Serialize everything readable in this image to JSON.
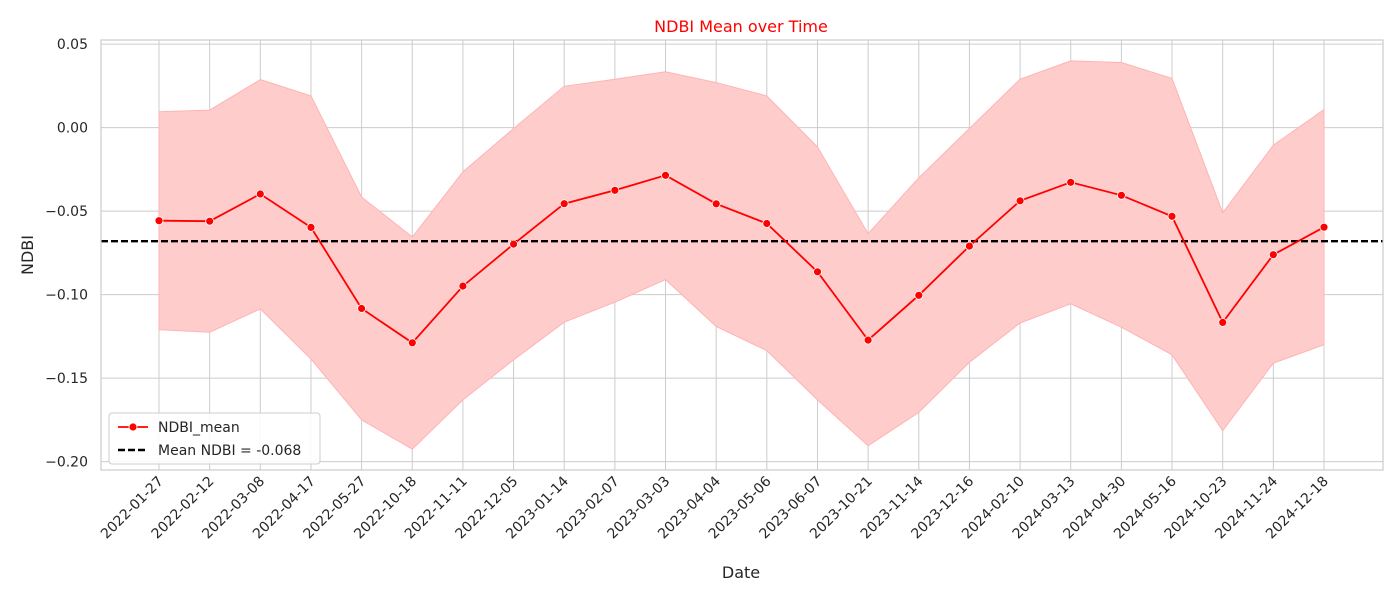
{
  "chart_data": {
    "type": "line",
    "title": "NDBI Mean over Time",
    "xlabel": "Date",
    "ylabel": "NDBI",
    "ylim": [
      -0.205,
      0.0525
    ],
    "yticks": [
      0.05,
      0.0,
      -0.05,
      -0.1,
      -0.15,
      -0.2
    ],
    "ytick_labels": [
      "0.05",
      "0.00",
      "−0.05",
      "−0.10",
      "−0.15",
      "−0.20"
    ],
    "grid": true,
    "legend_position": "lower-left",
    "colors": {
      "series": "#ff0000",
      "band": "#ffcccc",
      "band_edge": "#ffb3b3",
      "mean_line": "#000000",
      "title": "#ff0000"
    },
    "x": [
      "2022-01-27",
      "2022-02-12",
      "2022-03-08",
      "2022-04-17",
      "2022-05-27",
      "2022-10-18",
      "2022-11-11",
      "2022-12-05",
      "2023-01-14",
      "2023-02-07",
      "2023-03-03",
      "2023-04-04",
      "2023-05-06",
      "2023-06-07",
      "2023-10-21",
      "2023-11-14",
      "2023-12-16",
      "2024-02-10",
      "2024-03-13",
      "2024-04-30",
      "2024-05-16",
      "2024-10-23",
      "2024-11-24",
      "2024-12-18"
    ],
    "series": [
      {
        "name": "NDBI_mean",
        "values": [
          -0.0557,
          -0.056,
          -0.0397,
          -0.0597,
          -0.1083,
          -0.1288,
          -0.0949,
          -0.0697,
          -0.0455,
          -0.0375,
          -0.0285,
          -0.0456,
          -0.0574,
          -0.0863,
          -0.1272,
          -0.1004,
          -0.0709,
          -0.0438,
          -0.0327,
          -0.0405,
          -0.0531,
          -0.1166,
          -0.0761,
          -0.0596
        ],
        "upper": [
          0.0095,
          0.0105,
          0.0288,
          0.019,
          -0.0415,
          -0.0655,
          -0.0265,
          -0.0005,
          0.0248,
          0.029,
          0.0335,
          0.027,
          0.019,
          -0.0115,
          -0.0635,
          -0.03,
          -0.0005,
          0.029,
          0.04,
          0.039,
          0.0295,
          -0.051,
          -0.0105,
          0.0108
        ],
        "lower": [
          -0.121,
          -0.1225,
          -0.1085,
          -0.1385,
          -0.175,
          -0.1925,
          -0.163,
          -0.139,
          -0.1165,
          -0.1045,
          -0.091,
          -0.119,
          -0.1335,
          -0.163,
          -0.1905,
          -0.1705,
          -0.1405,
          -0.117,
          -0.1055,
          -0.1195,
          -0.136,
          -0.1815,
          -0.141,
          -0.13
        ]
      }
    ],
    "reference_line": {
      "label": "Mean NDBI = -0.068",
      "value": -0.068
    }
  }
}
